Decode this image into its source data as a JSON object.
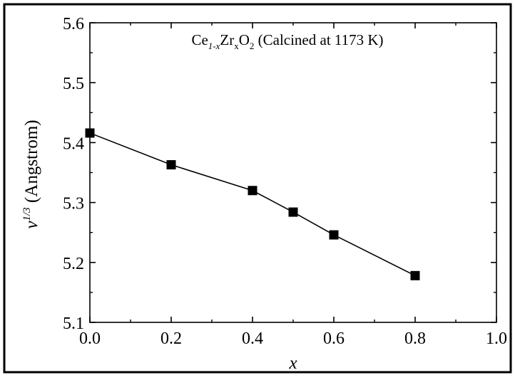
{
  "chart_data": {
    "type": "line",
    "title": "Ce1-xZrxO2 (Calcined at 1173 K)",
    "title_parts": {
      "base1": "Ce",
      "sub1": "1-x",
      "base2": "Zr",
      "sub2": "x",
      "base3": "O",
      "sub3": "2",
      "suffix": " (Calcined at 1173 K)"
    },
    "xlabel": "x",
    "ylabel": "v1/3 (Angstrom)",
    "ylabel_parts": {
      "base": "v",
      "sup": "1/3",
      "rest": " (Angstrom)"
    },
    "xlim": [
      0.0,
      1.0
    ],
    "ylim": [
      5.1,
      5.6
    ],
    "xticks": [
      "0.0",
      "0.2",
      "0.4",
      "0.6",
      "0.8",
      "1.0"
    ],
    "yticks": [
      "5.1",
      "5.2",
      "5.3",
      "5.4",
      "5.5",
      "5.6"
    ],
    "grid": false,
    "marker": "square",
    "series": [
      {
        "x": [
          0.0,
          0.2,
          0.4,
          0.5,
          0.6,
          0.8
        ],
        "y": [
          5.416,
          5.363,
          5.32,
          5.284,
          5.246,
          5.178
        ]
      }
    ]
  }
}
